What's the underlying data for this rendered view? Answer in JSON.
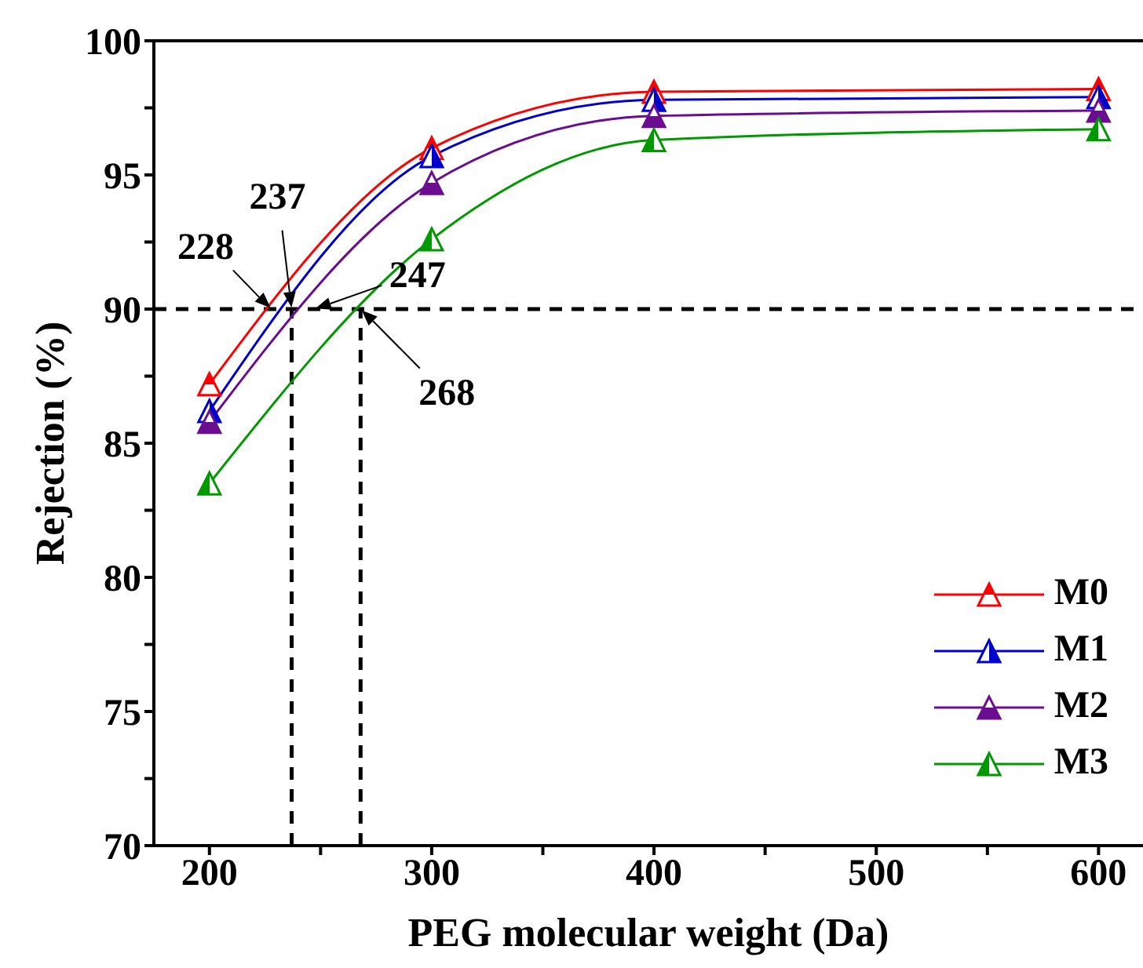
{
  "chart_data": {
    "type": "line",
    "xlabel": "PEG molecular weight (Da)",
    "ylabel": "Rejection (%)",
    "x": [
      200,
      300,
      400,
      600
    ],
    "series": [
      {
        "name": "M0",
        "color": "#ff0000",
        "values": [
          87.2,
          96.0,
          98.1,
          98.2
        ]
      },
      {
        "name": "M1",
        "color": "#0000cc",
        "values": [
          86.2,
          95.7,
          97.8,
          97.9
        ]
      },
      {
        "name": "M2",
        "color": "#6a0d91",
        "values": [
          85.8,
          94.7,
          97.2,
          97.4
        ]
      },
      {
        "name": "M3",
        "color": "#009900",
        "values": [
          83.5,
          92.6,
          96.3,
          96.7
        ]
      }
    ],
    "xlim": [
      175,
      620
    ],
    "xticks": [
      200,
      {
        "value": 250,
        "label": null
      },
      300,
      {
        "value": 350,
        "label": null
      },
      400,
      {
        "value": 450,
        "label": null
      },
      500,
      {
        "value": 550,
        "label": null
      },
      600
    ],
    "ylim": [
      70,
      100
    ],
    "yticks": [
      70,
      {
        "value": 72.5,
        "label": null
      },
      75,
      {
        "value": 77.5,
        "label": null
      },
      80,
      {
        "value": 82.5,
        "label": null
      },
      85,
      {
        "value": 87.5,
        "label": null
      },
      90,
      {
        "value": 92.5,
        "label": null
      },
      95,
      {
        "value": 97.5,
        "label": null
      },
      100
    ],
    "ref_lines": [
      {
        "axis": "y",
        "value": 90,
        "color": "#000000",
        "line_style": "dashed"
      },
      {
        "axis": "x",
        "value": 237,
        "color": "#000000",
        "line_style": "dashed"
      },
      {
        "axis": "x",
        "value": 268,
        "color": "#000000",
        "line_style": "dashed"
      }
    ],
    "annotations": [
      {
        "text": "228",
        "x": 228,
        "y": 90
      },
      {
        "text": "237",
        "x": 237,
        "y": 90
      },
      {
        "text": "247",
        "x": 247,
        "y": 90
      },
      {
        "text": "268",
        "x": 268,
        "y": 90
      }
    ],
    "marker": "triangle",
    "line_style": "solid",
    "grid": false,
    "legend": "bottom right"
  }
}
